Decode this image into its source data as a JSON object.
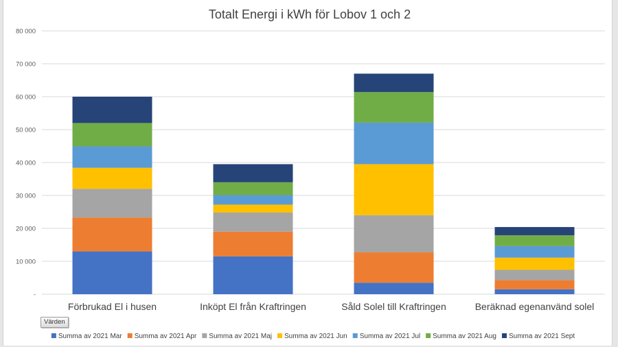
{
  "field_button": "Värden",
  "chart_data": {
    "type": "bar",
    "stacked": true,
    "title": "Totalt Energi i kWh för Lobov 1 och 2",
    "xlabel": "",
    "ylabel": "",
    "ylim": [
      0,
      80000
    ],
    "grid": true,
    "legend_position": "bottom",
    "y_tick_labels": [
      "-",
      "10 000",
      "20 000",
      "30 000",
      "40 000",
      "50 000",
      "60 000",
      "70 000",
      "80 000"
    ],
    "categories": [
      "Förbrukad El  i husen",
      "Inköpt El från Kraftringen",
      "Såld Solel till Kraftringen",
      "Beräknad egenanvänd solel"
    ],
    "series": [
      {
        "name": "Summa av 2021 Mar",
        "color": "#4472c4",
        "values": [
          13000,
          11500,
          3500,
          1500
        ]
      },
      {
        "name": "Summa av 2021 Apr",
        "color": "#ed7d31",
        "values": [
          10300,
          7500,
          9200,
          2800
        ]
      },
      {
        "name": "Summa av 2021 Maj",
        "color": "#a5a5a5",
        "values": [
          8700,
          5800,
          11300,
          3100
        ]
      },
      {
        "name": "Summa av 2021 Jun",
        "color": "#ffc000",
        "values": [
          6400,
          2400,
          15500,
          3700
        ]
      },
      {
        "name": "Summa av 2021 Jul",
        "color": "#5b9bd5",
        "values": [
          6500,
          2900,
          12600,
          3500
        ]
      },
      {
        "name": "Summa av 2021 Aug",
        "color": "#70ad47",
        "values": [
          7100,
          3900,
          9300,
          3300
        ]
      },
      {
        "name": "Summa av 2021 Sept",
        "color": "#264478",
        "values": [
          8000,
          5500,
          5600,
          2500
        ]
      }
    ]
  }
}
